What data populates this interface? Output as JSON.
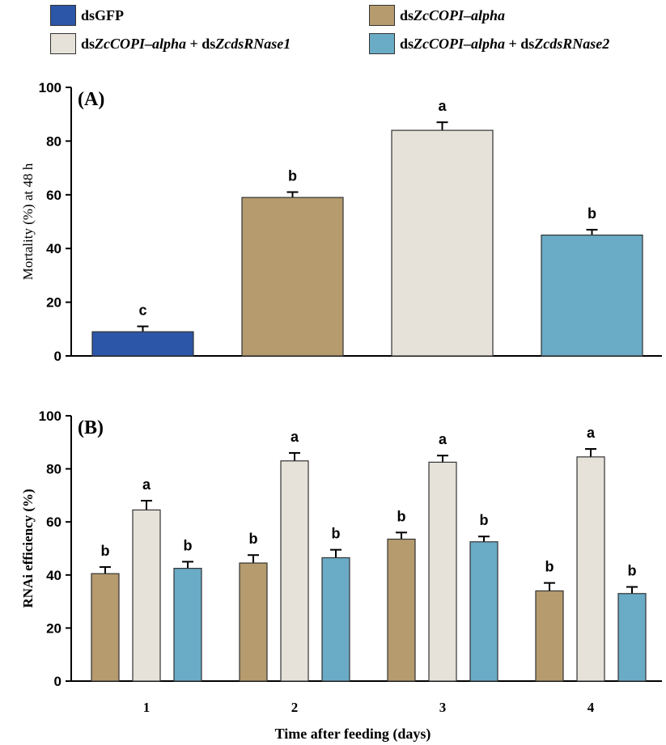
{
  "colors": {
    "dsGFP": "#2c56a8",
    "dsZcCOPI-alpha": "#b59b6d",
    "dsZcCOPI-alpha + dsZcdsRNase1": "#e6e2d9",
    "dsZcCOPI-alpha + dsZcdsRNase2": "#6aabc6"
  },
  "legend": [
    {
      "label": "dsGFP",
      "parts": [
        {
          "t": "dsGFP",
          "i": false
        }
      ]
    },
    {
      "label": "dsZcCOPI–alpha",
      "parts": [
        {
          "t": "ds",
          "i": false
        },
        {
          "t": "ZcCOPI–alpha",
          "i": true
        }
      ]
    },
    {
      "label": "dsZcCOPI–alpha + dsZcdsRNase1",
      "parts": [
        {
          "t": "ds",
          "i": false
        },
        {
          "t": "ZcCOPI–alpha",
          "i": true
        },
        {
          "t": " + ds",
          "i": false
        },
        {
          "t": "ZcdsRNase1",
          "i": true
        }
      ]
    },
    {
      "label": "dsZcCOPI–alpha + dsZcdsRNase2",
      "parts": [
        {
          "t": "ds",
          "i": false
        },
        {
          "t": "ZcCOPI–alpha",
          "i": true
        },
        {
          "t": " + ds",
          "i": false
        },
        {
          "t": "ZcdsRNase2",
          "i": true
        }
      ]
    }
  ],
  "chart_data": [
    {
      "type": "bar",
      "panel_label": "(A)",
      "ylabel": "Mortality (%) at 48 h",
      "xlabel": "",
      "ylim": [
        0,
        100
      ],
      "yticks": [
        0,
        20,
        40,
        60,
        80,
        100
      ],
      "categories": [
        "dsGFP",
        "dsZcCOPI–alpha",
        "dsZcCOPI–alpha + dsZcdsRNase1",
        "dsZcCOPI–alpha + dsZcdsRNase2"
      ],
      "values": [
        9,
        59,
        84,
        45
      ],
      "errors": [
        2,
        2,
        3,
        2
      ],
      "significance_letters": [
        "c",
        "b",
        "a",
        "b"
      ]
    },
    {
      "type": "bar",
      "panel_label": "(B)",
      "ylabel": "RNAi efficiency (%)",
      "xlabel": "Time after feeding (days)",
      "ylim": [
        0,
        100
      ],
      "yticks": [
        0,
        20,
        40,
        60,
        80,
        100
      ],
      "categories": [
        "1",
        "2",
        "3",
        "4"
      ],
      "series": [
        {
          "name": "dsZcCOPI–alpha",
          "values": [
            40.5,
            44.5,
            53.5,
            34
          ],
          "errors": [
            2.5,
            3,
            2.5,
            3
          ],
          "letters": [
            "b",
            "b",
            "b",
            "b"
          ]
        },
        {
          "name": "dsZcCOPI–alpha + dsZcdsRNase1",
          "values": [
            64.5,
            83,
            82.5,
            84.5
          ],
          "errors": [
            3.5,
            3,
            2.5,
            3
          ],
          "letters": [
            "a",
            "a",
            "a",
            "a"
          ]
        },
        {
          "name": "dsZcCOPI–alpha + dsZcdsRNase2",
          "values": [
            42.5,
            46.5,
            52.5,
            33
          ],
          "errors": [
            2.5,
            3,
            2,
            2.5
          ],
          "letters": [
            "b",
            "b",
            "b",
            "b"
          ]
        }
      ]
    }
  ]
}
